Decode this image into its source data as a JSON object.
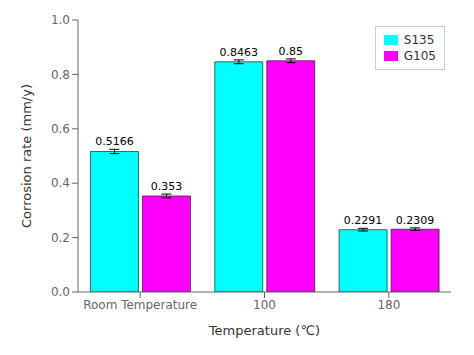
{
  "chart_data": {
    "type": "bar",
    "categories": [
      "Room Temperature",
      "100",
      "180"
    ],
    "series": [
      {
        "name": "S135",
        "color": "#00FFFF",
        "values": [
          0.5166,
          0.8463,
          0.2291
        ],
        "errors": [
          0.008,
          0.007,
          0.005
        ]
      },
      {
        "name": "G105",
        "color": "#FF00FF",
        "values": [
          0.353,
          0.85,
          0.2309
        ],
        "errors": [
          0.007,
          0.007,
          0.005
        ]
      }
    ],
    "xlabel": "Temperature (℃)",
    "ylabel": "Corrosion rate (mm/y)",
    "ylim": [
      0.0,
      1.0
    ],
    "yticks": [
      {
        "value": 0,
        "label": "0.0"
      },
      0.2,
      0.4,
      0.6,
      0.8,
      {
        "value": 1,
        "label": "1.0"
      }
    ],
    "grid": false,
    "legend": "upper right",
    "data_labels": true
  }
}
